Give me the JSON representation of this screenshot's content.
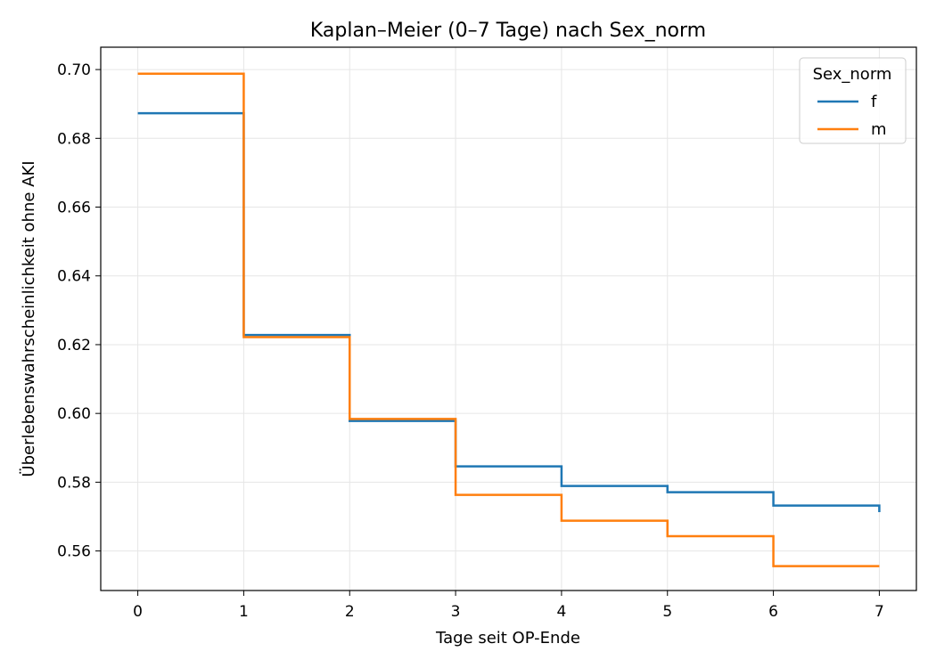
{
  "chart_data": {
    "type": "line",
    "step": "post",
    "title": "Kaplan–Meier (0–7 Tage) nach Sex_norm",
    "xlabel": "Tage seit OP-Ende",
    "ylabel": "Überlebenswahrscheinlichkeit ohne AKI",
    "xlim": [
      -0.35,
      7.35
    ],
    "ylim": [
      0.5485,
      0.7065
    ],
    "xticks": [
      0,
      1,
      2,
      3,
      4,
      5,
      6,
      7
    ],
    "yticks": [
      0.56,
      0.58,
      0.6,
      0.62,
      0.64,
      0.66,
      0.68,
      0.7
    ],
    "ytick_labels": [
      "0.56",
      "0.58",
      "0.60",
      "0.62",
      "0.64",
      "0.66",
      "0.68",
      "0.70"
    ],
    "grid": true,
    "legend": {
      "title": "Sex_norm",
      "placement": "top-right"
    },
    "series": [
      {
        "name": "f",
        "color": "#1f77b4",
        "x": [
          0,
          1,
          2,
          3,
          4,
          5,
          6,
          7
        ],
        "y": [
          0.6873,
          0.6228,
          0.5978,
          0.5846,
          0.5789,
          0.5771,
          0.5732,
          0.5713
        ]
      },
      {
        "name": "m",
        "color": "#ff7f0e",
        "x": [
          0,
          1,
          2,
          3,
          4,
          5,
          6,
          7
        ],
        "y": [
          0.6988,
          0.6222,
          0.5984,
          0.5763,
          0.5688,
          0.5643,
          0.5556,
          0.5556
        ]
      }
    ]
  }
}
